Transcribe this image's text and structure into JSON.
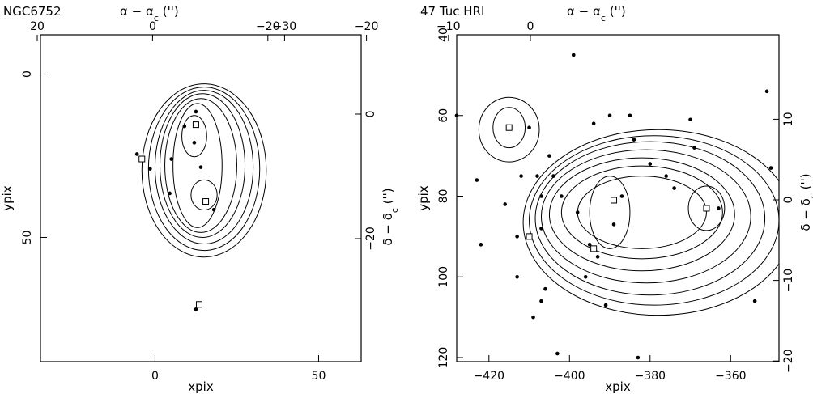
{
  "chart_data": [
    {
      "type": "scatter",
      "title": "NGC6752",
      "xlabel": "xpix",
      "ylabel": "ypix",
      "top_axis_label": "α − α",
      "top_axis_sub": "c",
      "top_axis_unit": " ('')",
      "right_axis_label": "δ − δ",
      "right_axis_sub": "c",
      "right_axis_unit": " ('')",
      "xlim": [
        -35,
        63
      ],
      "ylim": [
        88,
        -12
      ],
      "x_ticks": [
        0,
        50
      ],
      "y_ticks": [
        0,
        50
      ],
      "top_ticks": [
        {
          "v": 20,
          "label": "20"
        },
        {
          "v": 0,
          "label": "0"
        },
        {
          "v": -20,
          "label": "−20"
        }
      ],
      "right_ticks": [
        {
          "v": 0,
          "label": "0"
        },
        {
          "v": -20,
          "label": "−20"
        }
      ],
      "points": [
        [
          12.5,
          11.5
        ],
        [
          9,
          16
        ],
        [
          12,
          21
        ],
        [
          -5.5,
          24.5
        ],
        [
          -1.5,
          29
        ],
        [
          5,
          26
        ],
        [
          14,
          28.5
        ],
        [
          4.5,
          36.5
        ],
        [
          18,
          41.5
        ],
        [
          12.5,
          72
        ]
      ],
      "squares": [
        [
          12.5,
          15.5
        ],
        [
          -4,
          26
        ],
        [
          15.5,
          39
        ],
        [
          13.5,
          70.5
        ]
      ],
      "contours": [
        {
          "cx": 12,
          "cy": 19,
          "rx": 3.8,
          "ry": 6.3
        },
        {
          "cx": 15,
          "cy": 37,
          "rx": 4,
          "ry": 4.6
        },
        {
          "cx": 13,
          "cy": 28,
          "rx": 7.5,
          "ry": 19
        },
        {
          "cx": 14,
          "cy": 28,
          "rx": 11,
          "ry": 20.5
        },
        {
          "cx": 14.5,
          "cy": 28,
          "rx": 13,
          "ry": 22
        },
        {
          "cx": 15,
          "cy": 28.5,
          "rx": 15,
          "ry": 23.5
        },
        {
          "cx": 15,
          "cy": 29,
          "rx": 17,
          "ry": 25
        },
        {
          "cx": 15,
          "cy": 29.5,
          "rx": 19,
          "ry": 26.5
        }
      ]
    },
    {
      "type": "scatter",
      "title": "47 Tuc HRI",
      "xlabel": "xpix",
      "ylabel": "ypix",
      "top_axis_label": "α − α",
      "top_axis_sub": "c",
      "top_axis_unit": " ('')",
      "right_axis_label": "δ − δ",
      "right_axis_sub": "c",
      "right_axis_unit": " ('')",
      "xlim": [
        -428,
        -348
      ],
      "ylim": [
        121,
        40
      ],
      "x_ticks": [
        -420,
        -400,
        -380,
        -360
      ],
      "y_ticks": [
        40,
        60,
        80,
        100,
        120
      ],
      "top_ticks": [
        {
          "v": 0,
          "label": "0"
        },
        {
          "v": -10,
          "label": "−10"
        },
        {
          "v": -20,
          "label": "−20"
        },
        {
          "v": -30,
          "label": "−30"
        }
      ],
      "right_ticks": [
        {
          "v": 10,
          "label": "10"
        },
        {
          "v": 0,
          "label": "0"
        },
        {
          "v": -10,
          "label": "−10"
        },
        {
          "v": -20,
          "label": "−20"
        }
      ],
      "points": [
        [
          -428,
          60
        ],
        [
          -410,
          63
        ],
        [
          -399,
          45
        ],
        [
          -405,
          70
        ],
        [
          -404,
          75
        ],
        [
          -402,
          80
        ],
        [
          -398,
          84
        ],
        [
          -394,
          62
        ],
        [
          -390,
          60
        ],
        [
          -385,
          60
        ],
        [
          -384,
          66
        ],
        [
          -393,
          95
        ],
        [
          -389,
          87
        ],
        [
          -380,
          72
        ],
        [
          -376,
          75
        ],
        [
          -374,
          78
        ],
        [
          -370,
          61
        ],
        [
          -369,
          68
        ],
        [
          -363,
          83
        ],
        [
          -351,
          54
        ],
        [
          -350,
          73
        ],
        [
          -423,
          76
        ],
        [
          -422,
          92
        ],
        [
          -416,
          82
        ],
        [
          -413,
          90
        ],
        [
          -413,
          100
        ],
        [
          -412,
          75
        ],
        [
          -408,
          75
        ],
        [
          -407,
          80
        ],
        [
          -407,
          88
        ],
        [
          -406,
          103
        ],
        [
          -407,
          106
        ],
        [
          -409,
          110
        ],
        [
          -395,
          92
        ],
        [
          -396,
          100
        ],
        [
          -391,
          107
        ],
        [
          -387,
          80
        ],
        [
          -383,
          120
        ],
        [
          -366,
          83
        ],
        [
          -354,
          106
        ],
        [
          -403,
          119
        ]
      ],
      "squares": [
        [
          -415,
          63
        ],
        [
          -410,
          90
        ],
        [
          -394,
          93
        ],
        [
          -389,
          81
        ],
        [
          -366,
          83
        ]
      ],
      "contours": [
        {
          "cx": -415,
          "cy": 63,
          "rx": 4,
          "ry": 5
        },
        {
          "cx": -415,
          "cy": 63.5,
          "rx": 7.5,
          "ry": 8
        },
        {
          "cx": -382,
          "cy": 84,
          "rx": 16,
          "ry": 9
        },
        {
          "cx": -382,
          "cy": 84,
          "rx": 20,
          "ry": 11.5
        },
        {
          "cx": -382,
          "cy": 84.5,
          "rx": 23,
          "ry": 14
        },
        {
          "cx": -381,
          "cy": 85,
          "rx": 26,
          "ry": 16.5
        },
        {
          "cx": -380,
          "cy": 85.5,
          "rx": 28.5,
          "ry": 19
        },
        {
          "cx": -379,
          "cy": 86,
          "rx": 31,
          "ry": 21
        },
        {
          "cx": -378,
          "cy": 86.5,
          "rx": 33.5,
          "ry": 23
        },
        {
          "cx": -366,
          "cy": 83,
          "rx": 4.5,
          "ry": 5.5
        },
        {
          "cx": -390,
          "cy": 84,
          "rx": 5,
          "ry": 9
        }
      ]
    }
  ]
}
